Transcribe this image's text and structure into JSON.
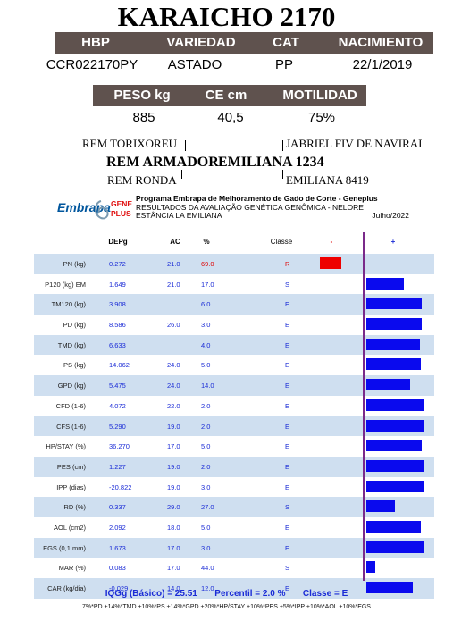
{
  "animal": {
    "name": "KARAICHO 2170"
  },
  "header1": {
    "hbp": "HBP",
    "variedad": "VARIEDAD",
    "cat": "CAT",
    "nacimiento": "NACIMIENTO"
  },
  "info1": {
    "hbp": "CCR022170PY",
    "variedad": "ASTADO",
    "cat": "PP",
    "nacimiento": "22/1/2019"
  },
  "header2": {
    "peso": "PESO kg",
    "ce": "CE cm",
    "motilidad": "MOTILIDAD"
  },
  "info2": {
    "peso": "885",
    "ce": "40,5",
    "motilidad": "75%"
  },
  "pedigree": {
    "sire_sire": "REM TORIXOREU",
    "sire": "REM ARMADOR",
    "sire_dam": "REM RONDA",
    "dam_sire": "JABRIEL FIV DE NAVIRAI",
    "dam": "EMILIANA 1234",
    "dam_dam": "EMILIANA 8419"
  },
  "program": {
    "logo_main": "Embrapa",
    "logo_gene": "GENE",
    "logo_plus": "PLUS",
    "title": "Programa Embrapa de Melhoramento de Gado de Corte - Geneplus",
    "subtitle": "RESULTADOS DA AVALIAÇÃO GENÉTICA GENÔMICA - NELORE",
    "farm": "ESTÂNCIA LA EMILIANA",
    "date": "Julho/2022"
  },
  "table": {
    "headers": {
      "depg": "DEPg",
      "ac": "AC",
      "pct": "%",
      "classe": "Classe",
      "minus": "-",
      "plus": "+"
    },
    "colors": {
      "positive": "#0a0aee",
      "negative": "#ee0000",
      "alt_row": "#cfdff0"
    },
    "rows": [
      {
        "label": "PN (kg)",
        "depg": "0.272",
        "ac": "21.0",
        "pct": "69.0",
        "classe": "R",
        "bar": -0.24,
        "red": true
      },
      {
        "label": "P120 (kg) EM",
        "depg": "1.649",
        "ac": "21.0",
        "pct": "17.0",
        "classe": "S",
        "bar": 0.42
      },
      {
        "label": "TM120 (kg)",
        "depg": "3.908",
        "ac": "",
        "pct": "6.0",
        "classe": "E",
        "bar": 0.62
      },
      {
        "label": "PD (kg)",
        "depg": "8.586",
        "ac": "26.0",
        "pct": "3.0",
        "classe": "E",
        "bar": 0.62
      },
      {
        "label": "TMD (kg)",
        "depg": "6.633",
        "ac": "",
        "pct": "4.0",
        "classe": "E",
        "bar": 0.6
      },
      {
        "label": "PS (kg)",
        "depg": "14.062",
        "ac": "24.0",
        "pct": "5.0",
        "classe": "E",
        "bar": 0.61
      },
      {
        "label": "GPD (kg)",
        "depg": "5.475",
        "ac": "24.0",
        "pct": "14.0",
        "classe": "E",
        "bar": 0.49
      },
      {
        "label": "CFD (1-6)",
        "depg": "4.072",
        "ac": "22.0",
        "pct": "2.0",
        "classe": "E",
        "bar": 0.65
      },
      {
        "label": "CFS (1-6)",
        "depg": "5.290",
        "ac": "19.0",
        "pct": "2.0",
        "classe": "E",
        "bar": 0.65
      },
      {
        "label": "HP/STAY (%)",
        "depg": "36.270",
        "ac": "17.0",
        "pct": "5.0",
        "classe": "E",
        "bar": 0.62
      },
      {
        "label": "PES (cm)",
        "depg": "1.227",
        "ac": "19.0",
        "pct": "2.0",
        "classe": "E",
        "bar": 0.65
      },
      {
        "label": "IPP (dias)",
        "depg": "-20.822",
        "ac": "19.0",
        "pct": "3.0",
        "classe": "E",
        "bar": 0.64
      },
      {
        "label": "RD (%)",
        "depg": "0.337",
        "ac": "29.0",
        "pct": "27.0",
        "classe": "S",
        "bar": 0.32
      },
      {
        "label": "AOL (cm2)",
        "depg": "2.092",
        "ac": "18.0",
        "pct": "5.0",
        "classe": "E",
        "bar": 0.61
      },
      {
        "label": "EGS (0,1 mm)",
        "depg": "1.673",
        "ac": "17.0",
        "pct": "3.0",
        "classe": "E",
        "bar": 0.64
      },
      {
        "label": "MAR (%)",
        "depg": "0.083",
        "ac": "17.0",
        "pct": "44.0",
        "classe": "S",
        "bar": 0.1
      },
      {
        "label": "CAR (kg/dia)",
        "depg": "-0.029",
        "ac": "14.0",
        "pct": "12.0",
        "classe": "E",
        "bar": 0.52
      }
    ]
  },
  "footer": {
    "summary": "IQGg (Básico) = 25.51       Percentil = 2.0 %       Classe = E",
    "formula": "7%*PD +14%*TMD +10%*PS +14%*GPD +20%*HP/STAY +10%*PES +5%*IPP +10%*AOL +10%*EGS"
  }
}
